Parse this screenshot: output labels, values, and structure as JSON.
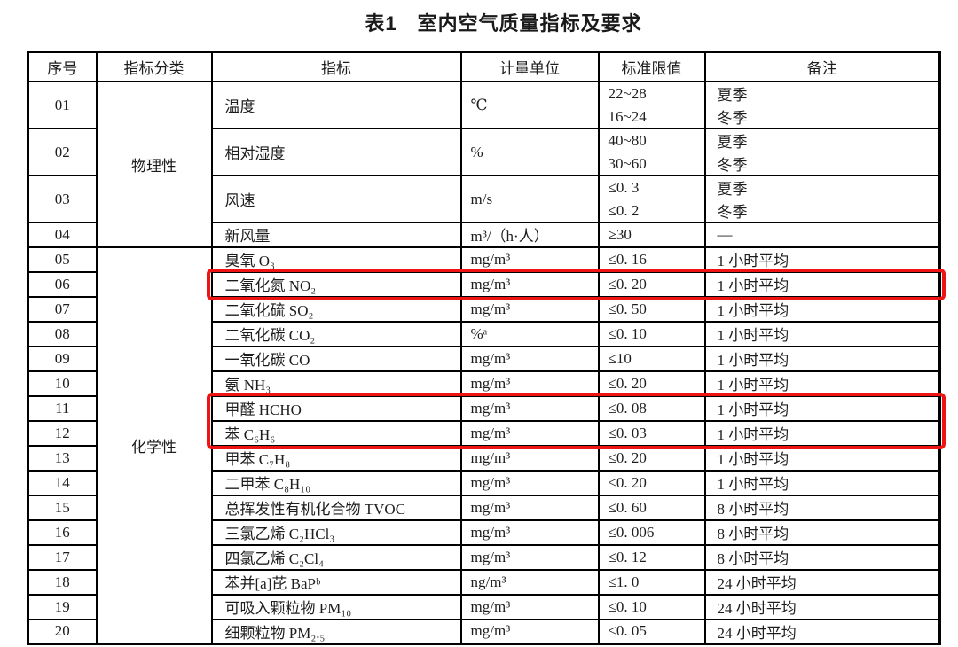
{
  "title": "表1　室内空气质量指标及要求",
  "highlight_color": "#ee1414",
  "table": {
    "headers": [
      "序号",
      "指标分类",
      "指标",
      "计量单位",
      "标准限值",
      "备注"
    ],
    "categories": {
      "physical": "物理性",
      "chemical": "化学性"
    },
    "physical_rows": [
      {
        "no": "01",
        "indicator": "温度",
        "unit": "℃",
        "limits": [
          {
            "value": "22~28",
            "remark": "夏季"
          },
          {
            "value": "16~24",
            "remark": "冬季"
          }
        ]
      },
      {
        "no": "02",
        "indicator": "相对湿度",
        "unit": "%",
        "limits": [
          {
            "value": "40~80",
            "remark": "夏季"
          },
          {
            "value": "30~60",
            "remark": "冬季"
          }
        ]
      },
      {
        "no": "03",
        "indicator": "风速",
        "unit": "m/s",
        "limits": [
          {
            "value": "≤0. 3",
            "remark": "夏季"
          },
          {
            "value": "≤0. 2",
            "remark": "冬季"
          }
        ]
      },
      {
        "no": "04",
        "indicator": "新风量",
        "unit": "m³/（h·人）",
        "limits": [
          {
            "value": "≥30",
            "remark": "—"
          }
        ]
      }
    ],
    "chemical_rows": [
      {
        "no": "05",
        "indicator": "臭氧 O₃",
        "unit": "mg/m³",
        "value": "≤0. 16",
        "remark": "1 小时平均",
        "highlighted": false
      },
      {
        "no": "06",
        "indicator": "二氧化氮 NO₂",
        "unit": "mg/m³",
        "value": "≤0. 20",
        "remark": "1 小时平均",
        "highlighted": true
      },
      {
        "no": "07",
        "indicator": "二氧化硫 SO₂",
        "unit": "mg/m³",
        "value": "≤0. 50",
        "remark": "1 小时平均",
        "highlighted": false
      },
      {
        "no": "08",
        "indicator": "二氧化碳 CO₂",
        "unit": "%ᵃ",
        "value": "≤0. 10",
        "remark": "1 小时平均",
        "highlighted": false
      },
      {
        "no": "09",
        "indicator": "一氧化碳 CO",
        "unit": "mg/m³",
        "value": "≤10",
        "remark": "1 小时平均",
        "highlighted": false
      },
      {
        "no": "10",
        "indicator": "氨 NH₃",
        "unit": "mg/m³",
        "value": "≤0. 20",
        "remark": "1 小时平均",
        "highlighted": false
      },
      {
        "no": "11",
        "indicator": "甲醛 HCHO",
        "unit": "mg/m³",
        "value": "≤0. 08",
        "remark": "1 小时平均",
        "highlighted": true
      },
      {
        "no": "12",
        "indicator": "苯 C₆H₆",
        "unit": "mg/m³",
        "value": "≤0. 03",
        "remark": "1 小时平均",
        "highlighted": true
      },
      {
        "no": "13",
        "indicator": "甲苯 C₇H₈",
        "unit": "mg/m³",
        "value": "≤0. 20",
        "remark": "1 小时平均",
        "highlighted": false
      },
      {
        "no": "14",
        "indicator": "二甲苯 C₈H₁₀",
        "unit": "mg/m³",
        "value": "≤0. 20",
        "remark": "1 小时平均",
        "highlighted": false
      },
      {
        "no": "15",
        "indicator": "总挥发性有机化合物 TVOC",
        "unit": "mg/m³",
        "value": "≤0. 60",
        "remark": "8 小时平均",
        "highlighted": false
      },
      {
        "no": "16",
        "indicator": "三氯乙烯 C₂HCl₃",
        "unit": "mg/m³",
        "value": "≤0. 006",
        "remark": "8 小时平均",
        "highlighted": false
      },
      {
        "no": "17",
        "indicator": "四氯乙烯 C₂Cl₄",
        "unit": "mg/m³",
        "value": "≤0. 12",
        "remark": "8 小时平均",
        "highlighted": false
      },
      {
        "no": "18",
        "indicator": "苯并[a]芘 BaPᵇ",
        "unit": "ng/m³",
        "value": "≤1. 0",
        "remark": "24 小时平均",
        "highlighted": false
      },
      {
        "no": "19",
        "indicator": "可吸入颗粒物 PM₁₀",
        "unit": "mg/m³",
        "value": "≤0. 10",
        "remark": "24 小时平均",
        "highlighted": false
      },
      {
        "no": "20",
        "indicator": "细颗粒物 PM₂.₅",
        "unit": "mg/m³",
        "value": "≤0. 05",
        "remark": "24 小时平均",
        "highlighted": false
      }
    ]
  }
}
